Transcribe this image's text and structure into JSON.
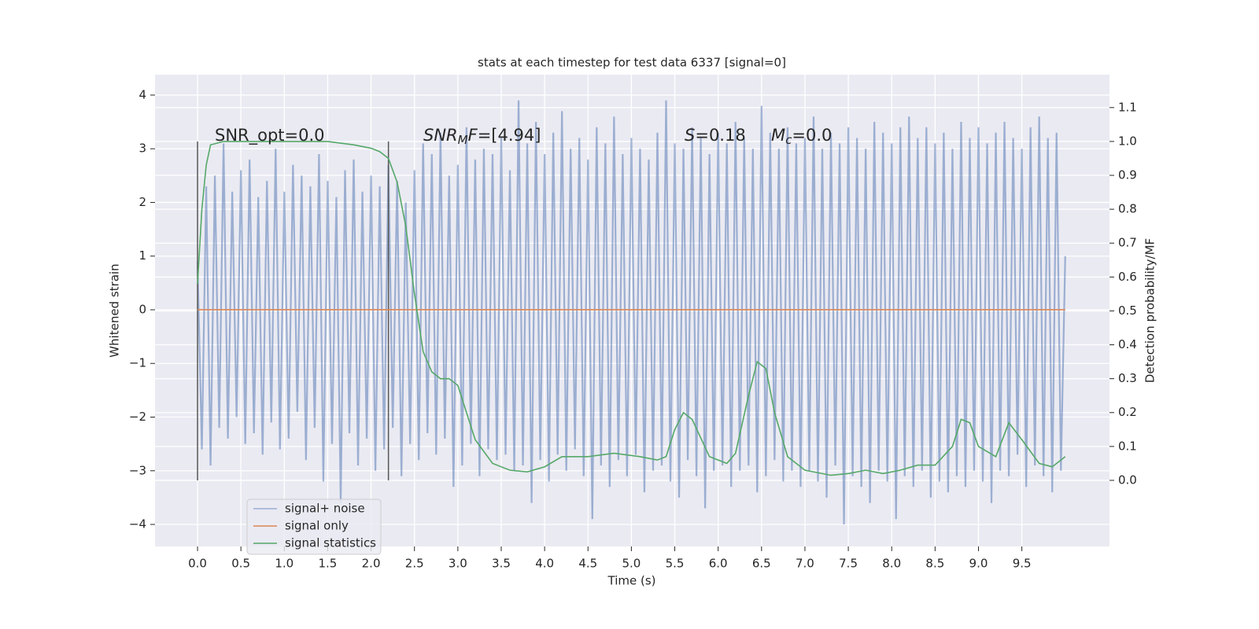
{
  "chart_data": {
    "type": "line",
    "title": "stats at each timestep for test data 6337 [signal=0]",
    "xlabel": "Time (s)",
    "ylabel": "Whitened strain",
    "y2label": "Detection probability/MF",
    "xlim": [
      -0.49,
      10.51
    ],
    "ylim": [
      -4.41,
      4.38
    ],
    "y2lim": [
      -0.195,
      1.197
    ],
    "xticks": [
      {
        "value": 0,
        "label": "0.0"
      },
      0.5,
      {
        "value": 1,
        "label": "1.0"
      },
      1.5,
      {
        "value": 2,
        "label": "2.0"
      },
      2.5,
      {
        "value": 3,
        "label": "3.0"
      },
      3.5,
      {
        "value": 4,
        "label": "4.0"
      },
      4.5,
      {
        "value": 5,
        "label": "5.0"
      },
      5.5,
      {
        "value": 6,
        "label": "6.0"
      },
      6.5,
      {
        "value": 7,
        "label": "7.0"
      },
      7.5,
      {
        "value": 8,
        "label": "8.0"
      },
      8.5,
      {
        "value": 9,
        "label": "9.0"
      },
      9.5
    ],
    "yticks": [
      -4,
      -3,
      -2,
      -1,
      0,
      1,
      2,
      3,
      4
    ],
    "y2ticks": [
      {
        "value": 0,
        "label": "0.0"
      },
      0.1,
      0.2,
      0.3,
      0.4,
      0.5,
      0.6,
      0.7,
      0.8,
      0.9,
      {
        "value": 1,
        "label": "1.0"
      },
      1.1
    ],
    "grid": true,
    "legend": "lower left",
    "vlines": [
      0,
      2.2
    ],
    "vline_color": "#555555",
    "annotations": [
      {
        "parts": [
          {
            "text": "SNR_opt=0.0"
          }
        ]
      },
      {
        "parts": [
          {
            "text": "SNR",
            "style": "italic"
          },
          {
            "text": "M",
            "style": "sub"
          },
          {
            "text": "F",
            "style": "italic"
          },
          {
            "text": "=[4.94]"
          }
        ]
      },
      {
        "parts": [
          {
            "text": "S",
            "style": "italic"
          },
          {
            "text": "=0.18"
          }
        ]
      },
      {
        "parts": [
          {
            "text": "M",
            "style": "italic"
          },
          {
            "text": "c",
            "style": "sub"
          },
          {
            "text": "=0.0"
          }
        ]
      }
    ],
    "series": [
      {
        "name": "signal+ noise",
        "color": "#4c72b0",
        "opacity": 0.5,
        "x": [
          0,
          0.05,
          0.1,
          0.15,
          0.2,
          0.25,
          0.3,
          0.35,
          0.4,
          0.45,
          0.5,
          0.55,
          0.6,
          0.65,
          0.7,
          0.75,
          0.8,
          0.85,
          0.9,
          0.95,
          1,
          1.05,
          1.1,
          1.15,
          1.2,
          1.25,
          1.3,
          1.35,
          1.4,
          1.45,
          1.5,
          1.55,
          1.6,
          1.65,
          1.7,
          1.75,
          1.8,
          1.85,
          1.9,
          1.95,
          2,
          2.05,
          2.1,
          2.15,
          2.2,
          2.25,
          2.3,
          2.35,
          2.4,
          2.45,
          2.5,
          2.55,
          2.6,
          2.65,
          2.7,
          2.75,
          2.8,
          2.85,
          2.9,
          2.95,
          3,
          3.05,
          3.1,
          3.15,
          3.2,
          3.25,
          3.3,
          3.35,
          3.4,
          3.45,
          3.5,
          3.55,
          3.6,
          3.65,
          3.7,
          3.75,
          3.8,
          3.85,
          3.9,
          3.95,
          4,
          4.05,
          4.1,
          4.15,
          4.2,
          4.25,
          4.3,
          4.35,
          4.4,
          4.45,
          4.5,
          4.55,
          4.6,
          4.65,
          4.7,
          4.75,
          4.8,
          4.85,
          4.9,
          4.95,
          5,
          5.05,
          5.1,
          5.15,
          5.2,
          5.25,
          5.3,
          5.35,
          5.4,
          5.45,
          5.5,
          5.55,
          5.6,
          5.65,
          5.7,
          5.75,
          5.8,
          5.85,
          5.9,
          5.95,
          6,
          6.05,
          6.1,
          6.15,
          6.2,
          6.25,
          6.3,
          6.35,
          6.4,
          6.45,
          6.5,
          6.55,
          6.6,
          6.65,
          6.7,
          6.75,
          6.8,
          6.85,
          6.9,
          6.95,
          7,
          7.05,
          7.1,
          7.15,
          7.2,
          7.25,
          7.3,
          7.35,
          7.4,
          7.45,
          7.5,
          7.55,
          7.6,
          7.65,
          7.7,
          7.75,
          7.8,
          7.85,
          7.9,
          7.95,
          8,
          8.05,
          8.1,
          8.15,
          8.2,
          8.25,
          8.3,
          8.35,
          8.4,
          8.45,
          8.5,
          8.55,
          8.6,
          8.65,
          8.7,
          8.75,
          8.8,
          8.85,
          8.9,
          8.95,
          9,
          9.05,
          9.1,
          9.15,
          9.2,
          9.25,
          9.3,
          9.35,
          9.4,
          9.45,
          9.5,
          9.55,
          9.6,
          9.65,
          9.7,
          9.75,
          9.8,
          9.85,
          9.9,
          9.95,
          10
        ],
        "values": [
          0.9,
          -2.6,
          2.3,
          -2.9,
          2.5,
          -2.2,
          3.1,
          -2.4,
          2.2,
          -2.0,
          2.6,
          -2.5,
          2.8,
          -2.3,
          2.1,
          -2.7,
          2.4,
          -2.1,
          3.0,
          -2.6,
          2.2,
          -2.4,
          2.7,
          -1.9,
          2.5,
          -2.8,
          2.3,
          -2.2,
          2.9,
          -3.2,
          2.4,
          -2.5,
          2.1,
          -3.6,
          2.6,
          -2.3,
          2.8,
          -2.9,
          2.2,
          -2.4,
          2.5,
          -3.0,
          2.3,
          -2.6,
          2.7,
          -2.2,
          2.4,
          -3.1,
          2.0,
          -2.5,
          2.6,
          -2.8,
          3.1,
          -2.3,
          2.9,
          -2.7,
          3.3,
          -2.4,
          2.5,
          -3.3,
          2.7,
          -2.9,
          3.4,
          -2.5,
          2.8,
          -3.1,
          3.0,
          -2.6,
          2.9,
          -2.8,
          3.2,
          -2.7,
          2.6,
          -3.0,
          3.9,
          -2.9,
          3.1,
          -3.6,
          3.5,
          -2.8,
          2.9,
          -3.2,
          3.3,
          -2.7,
          3.7,
          -3.0,
          3.0,
          -2.6,
          3.2,
          -3.1,
          2.8,
          -3.9,
          3.4,
          -2.9,
          3.1,
          -3.3,
          3.6,
          -2.8,
          2.9,
          -3.1,
          3.2,
          -2.7,
          3.0,
          -3.4,
          2.8,
          -3.0,
          3.3,
          -2.9,
          3.9,
          -3.2,
          3.1,
          -3.5,
          3.0,
          -2.8,
          3.4,
          -3.1,
          3.2,
          -3.7,
          2.9,
          -3.0,
          3.3,
          -2.9,
          3.1,
          -3.3,
          3.5,
          -3.0,
          3.2,
          -2.9,
          3.0,
          -3.4,
          3.8,
          -3.1,
          3.3,
          -2.8,
          3.0,
          -3.2,
          3.4,
          -3.0,
          3.1,
          -3.3,
          3.2,
          -3.0,
          3.6,
          -3.2,
          3.0,
          -3.5,
          3.3,
          -2.9,
          3.1,
          -4.0,
          3.4,
          -3.1,
          3.2,
          -3.3,
          3.0,
          -3.6,
          3.5,
          -3.0,
          3.3,
          -3.2,
          3.1,
          -3.9,
          3.4,
          -3.1,
          3.6,
          -3.3,
          3.2,
          -3.0,
          3.4,
          -3.5,
          3.1,
          -3.2,
          3.3,
          -3.4,
          3.0,
          -3.1,
          3.5,
          -3.3,
          3.2,
          -3.0,
          3.4,
          -3.2,
          3.1,
          -3.6,
          3.3,
          -3.0,
          3.5,
          -3.1,
          3.2,
          -2.7,
          3.0,
          -3.3,
          3.4,
          -2.9,
          3.6,
          -3.1,
          3.2,
          -3.4,
          3.3,
          -3.0,
          1.0
        ]
      },
      {
        "name": "signal only",
        "color": "#dd8452",
        "opacity": 1,
        "x": [
          0,
          10
        ],
        "values": [
          0,
          0
        ]
      },
      {
        "name": "signal statistics",
        "color": "#55a868",
        "opacity": 1,
        "axis": "y2",
        "x": [
          0,
          0.05,
          0.1,
          0.15,
          0.3,
          1,
          1.5,
          1.8,
          2,
          2.1,
          2.2,
          2.3,
          2.4,
          2.5,
          2.6,
          2.7,
          2.8,
          2.9,
          3,
          3.1,
          3.2,
          3.4,
          3.6,
          3.8,
          4,
          4.2,
          4.5,
          4.8,
          5.1,
          5.3,
          5.4,
          5.5,
          5.6,
          5.7,
          5.9,
          6.1,
          6.2,
          6.35,
          6.45,
          6.55,
          6.65,
          6.8,
          7,
          7.3,
          7.5,
          7.7,
          7.9,
          8.1,
          8.3,
          8.5,
          8.7,
          8.8,
          8.9,
          9,
          9.2,
          9.35,
          9.5,
          9.7,
          9.85,
          10
        ],
        "values": [
          0.58,
          0.8,
          0.93,
          0.99,
          1.0,
          1.0,
          1.0,
          0.99,
          0.98,
          0.97,
          0.95,
          0.88,
          0.75,
          0.55,
          0.38,
          0.32,
          0.3,
          0.3,
          0.28,
          0.2,
          0.12,
          0.05,
          0.03,
          0.025,
          0.04,
          0.07,
          0.07,
          0.08,
          0.07,
          0.06,
          0.07,
          0.15,
          0.2,
          0.18,
          0.07,
          0.05,
          0.08,
          0.25,
          0.35,
          0.33,
          0.2,
          0.07,
          0.03,
          0.015,
          0.02,
          0.03,
          0.02,
          0.03,
          0.045,
          0.045,
          0.1,
          0.18,
          0.17,
          0.1,
          0.07,
          0.17,
          0.12,
          0.05,
          0.04,
          0.07
        ]
      }
    ]
  }
}
